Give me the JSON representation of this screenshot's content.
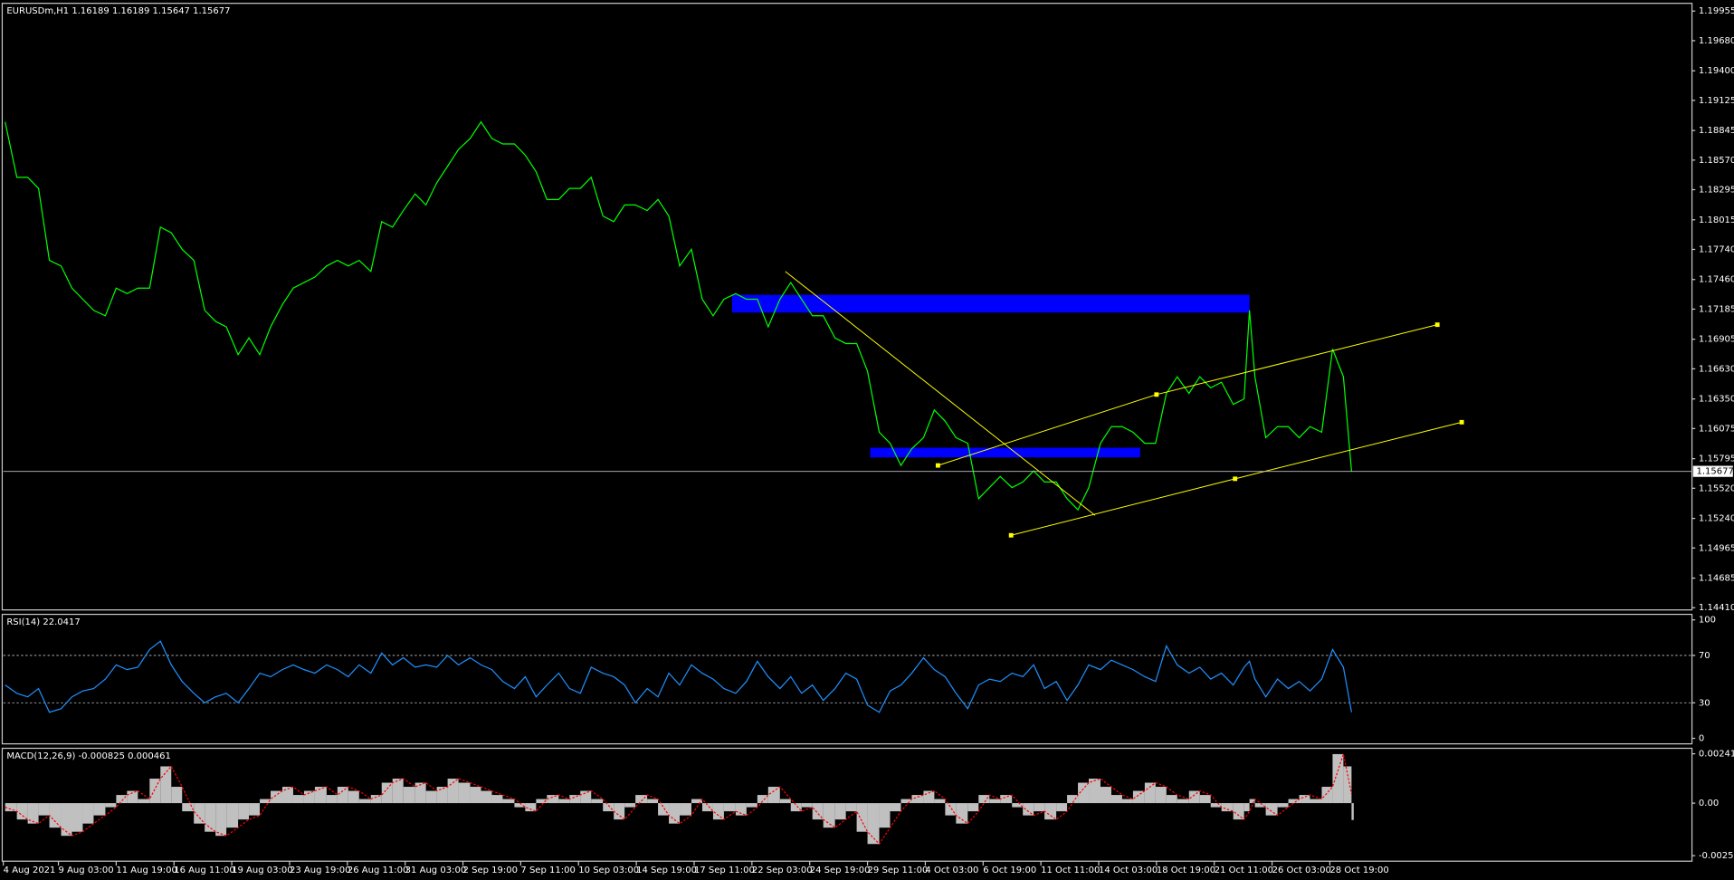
{
  "chart_data": [
    {
      "type": "line",
      "title": "EURUSDm,H1 1.16189 1.16189 1.15647 1.15677",
      "color": "#00ff00",
      "x": [
        2,
        15,
        27,
        39,
        51,
        64,
        76,
        88,
        100,
        113,
        125,
        137,
        149,
        162,
        174,
        186,
        198,
        211,
        223,
        235,
        247,
        260,
        272,
        284,
        296,
        309,
        321,
        333,
        345,
        358,
        370,
        382,
        394,
        407,
        419,
        431,
        443,
        456,
        468,
        480,
        492,
        504,
        517,
        529,
        541,
        553,
        566,
        578,
        590,
        602,
        615,
        627,
        639,
        651,
        664,
        676,
        688,
        700,
        713,
        725,
        737,
        749,
        762,
        774,
        786,
        798,
        811,
        823,
        835,
        847,
        860,
        872,
        884,
        896,
        908,
        921,
        933,
        945,
        957,
        970,
        982,
        994,
        1006,
        1019,
        1031,
        1043,
        1055,
        1068,
        1080,
        1092,
        1104,
        1117,
        1129,
        1141,
        1153,
        1166,
        1178,
        1190,
        1202,
        1215,
        1227,
        1239,
        1251,
        1264,
        1276,
        1288,
        1300,
        1313,
        1325,
        1337,
        1349,
        1362,
        1374,
        1380,
        1386,
        1398,
        1411,
        1423,
        1435,
        1447,
        1460,
        1472,
        1484,
        1493
      ],
      "values": [
        1.18925,
        1.1841,
        1.1841,
        1.18307,
        1.17638,
        1.17586,
        1.1738,
        1.17277,
        1.17174,
        1.17123,
        1.1738,
        1.17329,
        1.1738,
        1.1738,
        1.17947,
        1.17895,
        1.17741,
        1.17638,
        1.17174,
        1.17071,
        1.1702,
        1.16762,
        1.16917,
        1.16762,
        1.1702,
        1.17226,
        1.1738,
        1.17432,
        1.17483,
        1.17586,
        1.17638,
        1.17586,
        1.17638,
        1.17535,
        1.17998,
        1.17947,
        1.18101,
        1.18256,
        1.18153,
        1.18359,
        1.18513,
        1.18668,
        1.18771,
        1.18925,
        1.18771,
        1.1872,
        1.1872,
        1.18616,
        1.18462,
        1.18204,
        1.18204,
        1.18307,
        1.18307,
        1.1841,
        1.1805,
        1.17998,
        1.18153,
        1.18153,
        1.18101,
        1.18204,
        1.1805,
        1.17586,
        1.17741,
        1.17277,
        1.17123,
        1.17277,
        1.17329,
        1.17277,
        1.17277,
        1.1702,
        1.17277,
        1.17432,
        1.17277,
        1.17123,
        1.17123,
        1.16917,
        1.16865,
        1.16865,
        1.16608,
        1.16041,
        1.15938,
        1.15732,
        1.15887,
        1.1599,
        1.16247,
        1.16144,
        1.1599,
        1.15938,
        1.15423,
        1.15526,
        1.15629,
        1.15526,
        1.15578,
        1.15681,
        1.15578,
        1.15578,
        1.15423,
        1.1532,
        1.15526,
        1.15938,
        1.16093,
        1.16093,
        1.16041,
        1.15938,
        1.15938,
        1.16402,
        1.16556,
        1.16402,
        1.16556,
        1.16453,
        1.16505,
        1.16299,
        1.1635,
        1.17174,
        1.16556,
        1.1599,
        1.16093,
        1.16093,
        1.1599,
        1.16093,
        1.16041,
        1.16814,
        1.16556,
        1.15677
      ],
      "xlim": [
        0,
        1870
      ],
      "ylim": [
        1.1441,
        1.19955
      ],
      "yticks": [
        1.19955,
        {
          "value": 1.1968,
          "label": "1.19680"
        },
        {
          "value": 1.194,
          "label": "1.19400"
        },
        1.19125,
        1.18845,
        {
          "value": 1.1857,
          "label": "1.18570"
        },
        1.18295,
        1.18015,
        {
          "value": 1.1774,
          "label": "1.17740"
        },
        {
          "value": 1.1746,
          "label": "1.17460"
        },
        1.17185,
        1.16905,
        {
          "value": 1.1663,
          "label": "1.16630"
        },
        {
          "value": 1.1635,
          "label": "1.16350"
        },
        1.16075,
        1.15795,
        {
          "value": 1.1552,
          "label": "1.15520"
        },
        {
          "value": 1.1524,
          "label": "1.15240"
        },
        1.14965,
        1.14685,
        {
          "value": 1.1441,
          "label": "1.14410"
        }
      ],
      "xticks": [
        {
          "value": 0,
          "label": "4 Aug 2021"
        },
        {
          "value": 61,
          "label": "9 Aug 03:00"
        },
        {
          "value": 125,
          "label": "11 Aug 19:00"
        },
        {
          "value": 189,
          "label": "16 Aug 11:00"
        },
        {
          "value": 253,
          "label": "19 Aug 03:00"
        },
        {
          "value": 317,
          "label": "23 Aug 19:00"
        },
        {
          "value": 381,
          "label": "26 Aug 11:00"
        },
        {
          "value": 445,
          "label": "31 Aug 03:00"
        },
        {
          "value": 509,
          "label": "2 Sep 19:00"
        },
        {
          "value": 573,
          "label": "7 Sep 11:00"
        },
        {
          "value": 637,
          "label": "10 Sep 03:00"
        },
        {
          "value": 701,
          "label": "14 Sep 19:00"
        },
        {
          "value": 765,
          "label": "17 Sep 11:00"
        },
        {
          "value": 829,
          "label": "22 Sep 03:00"
        },
        {
          "value": 893,
          "label": "24 Sep 19:00"
        },
        {
          "value": 957,
          "label": "29 Sep 11:00"
        },
        {
          "value": 1021,
          "label": "4 Oct 03:00"
        },
        {
          "value": 1085,
          "label": "6 Oct 19:00"
        },
        {
          "value": 1149,
          "label": "11 Oct 11:00"
        },
        {
          "value": 1213,
          "label": "14 Oct 03:00"
        },
        {
          "value": 1277,
          "label": "18 Oct 19:00"
        },
        {
          "value": 1341,
          "label": "21 Oct 11:00"
        },
        {
          "value": 1405,
          "label": "26 Oct 03:00"
        },
        {
          "value": 1469,
          "label": "28 Oct 19:00"
        }
      ],
      "last_price": 1.15677,
      "zones": [
        {
          "x": [
            807,
            1380
          ],
          "y": [
            1.17318,
            1.17153
          ],
          "color": "#0000ff"
        },
        {
          "x": [
            960,
            1259
          ],
          "y": [
            1.15897,
            1.15807
          ],
          "color": "#0000ff"
        }
      ],
      "trendlines": [
        {
          "x": [
            866,
            1209
          ],
          "y": [
            1.17535,
            1.15268
          ],
          "color": "#ffff00",
          "handles": false
        },
        {
          "x": [
            1035,
            1277,
            1588
          ],
          "y": [
            1.15732,
            1.16391,
            1.1704
          ],
          "color": "#ffff00",
          "handles": true
        },
        {
          "x": [
            1116,
            1364,
            1615
          ],
          "y": [
            1.15083,
            1.15608,
            1.16134
          ],
          "color": "#ffff00",
          "handles": true
        }
      ]
    },
    {
      "type": "line",
      "title": "RSI(14) 22.0417",
      "color": "#1e90ff",
      "x": [
        2,
        15,
        27,
        39,
        51,
        64,
        76,
        88,
        100,
        113,
        125,
        137,
        149,
        162,
        174,
        186,
        198,
        211,
        223,
        235,
        247,
        260,
        272,
        284,
        296,
        309,
        321,
        333,
        345,
        358,
        370,
        382,
        394,
        407,
        419,
        431,
        443,
        456,
        468,
        480,
        492,
        504,
        517,
        529,
        541,
        553,
        566,
        578,
        590,
        602,
        615,
        627,
        639,
        651,
        664,
        676,
        688,
        700,
        713,
        725,
        737,
        749,
        762,
        774,
        786,
        798,
        811,
        823,
        835,
        847,
        860,
        872,
        884,
        896,
        908,
        921,
        933,
        945,
        957,
        970,
        982,
        994,
        1006,
        1019,
        1031,
        1043,
        1055,
        1068,
        1080,
        1092,
        1104,
        1117,
        1129,
        1141,
        1153,
        1166,
        1178,
        1190,
        1202,
        1215,
        1227,
        1239,
        1251,
        1264,
        1276,
        1288,
        1300,
        1313,
        1325,
        1337,
        1349,
        1362,
        1374,
        1380,
        1386,
        1398,
        1411,
        1423,
        1435,
        1447,
        1460,
        1472,
        1484,
        1493
      ],
      "values": [
        45,
        38,
        35,
        42,
        22,
        25,
        35,
        40,
        42,
        50,
        62,
        58,
        60,
        75,
        82,
        62,
        48,
        38,
        30,
        35,
        38,
        30,
        42,
        55,
        52,
        58,
        62,
        58,
        55,
        62,
        58,
        52,
        62,
        55,
        72,
        62,
        68,
        60,
        62,
        60,
        70,
        62,
        68,
        62,
        58,
        48,
        42,
        52,
        35,
        45,
        55,
        42,
        38,
        60,
        55,
        52,
        45,
        30,
        42,
        35,
        55,
        45,
        62,
        55,
        50,
        42,
        38,
        48,
        65,
        52,
        42,
        52,
        38,
        45,
        32,
        42,
        55,
        50,
        28,
        22,
        40,
        45,
        55,
        68,
        58,
        52,
        38,
        25,
        45,
        50,
        48,
        55,
        52,
        62,
        42,
        48,
        32,
        45,
        62,
        58,
        66,
        62,
        58,
        52,
        48,
        78,
        62,
        55,
        60,
        50,
        55,
        45,
        60,
        65,
        50,
        35,
        50,
        42,
        48,
        40,
        50,
        75,
        60,
        22.0417
      ],
      "xlim": [
        0,
        1870
      ],
      "ylim": [
        0,
        100
      ],
      "yticks": [
        100,
        70,
        30,
        0
      ],
      "levels": [
        70,
        30
      ]
    },
    {
      "type": "bar",
      "title": "MACD(12,26,9) -0.000825 0.000461",
      "color": "#c0c0c0",
      "signal_color": "#ff0000",
      "x": [
        2,
        15,
        27,
        39,
        51,
        64,
        76,
        88,
        100,
        113,
        125,
        137,
        149,
        162,
        174,
        186,
        198,
        211,
        223,
        235,
        247,
        260,
        272,
        284,
        296,
        309,
        321,
        333,
        345,
        358,
        370,
        382,
        394,
        407,
        419,
        431,
        443,
        456,
        468,
        480,
        492,
        504,
        517,
        529,
        541,
        553,
        566,
        578,
        590,
        602,
        615,
        627,
        639,
        651,
        664,
        676,
        688,
        700,
        713,
        725,
        737,
        749,
        762,
        774,
        786,
        798,
        811,
        823,
        835,
        847,
        860,
        872,
        884,
        896,
        908,
        921,
        933,
        945,
        957,
        970,
        982,
        994,
        1006,
        1019,
        1031,
        1043,
        1055,
        1068,
        1080,
        1092,
        1104,
        1117,
        1129,
        1141,
        1153,
        1166,
        1178,
        1190,
        1202,
        1215,
        1227,
        1239,
        1251,
        1264,
        1276,
        1288,
        1300,
        1313,
        1325,
        1337,
        1349,
        1362,
        1374,
        1380,
        1386,
        1398,
        1411,
        1423,
        1435,
        1447,
        1460,
        1472,
        1484,
        1493
      ],
      "values": [
        -0.0004,
        -0.0008,
        -0.001,
        -0.0006,
        -0.0012,
        -0.0016,
        -0.0014,
        -0.001,
        -0.0006,
        -0.0002,
        0.0004,
        0.0006,
        0.0002,
        0.0012,
        0.0018,
        0.0008,
        -0.0004,
        -0.001,
        -0.0014,
        -0.0016,
        -0.0012,
        -0.0008,
        -0.0006,
        0.0002,
        0.0006,
        0.0008,
        0.0004,
        0.0006,
        0.0008,
        0.0004,
        0.0008,
        0.0006,
        0.0002,
        0.0004,
        0.001,
        0.0012,
        0.0008,
        0.001,
        0.0006,
        0.0008,
        0.0012,
        0.001,
        0.0008,
        0.0006,
        0.0004,
        0.0002,
        -0.0002,
        -0.0004,
        0.0002,
        0.0004,
        0.0002,
        0.0004,
        0.0006,
        0.0002,
        -0.0004,
        -0.0008,
        -0.0002,
        0.0004,
        0.0002,
        -0.0006,
        -0.001,
        -0.0006,
        0.0002,
        -0.0004,
        -0.0008,
        -0.0004,
        -0.0006,
        -0.0002,
        0.0004,
        0.0008,
        0.0002,
        -0.0004,
        -0.0002,
        -0.0008,
        -0.0012,
        -0.0008,
        -0.0004,
        -0.0014,
        -0.002,
        -0.0012,
        -0.0004,
        0.0002,
        0.0004,
        0.0006,
        0.0002,
        -0.0006,
        -0.001,
        -0.0004,
        0.0004,
        0.0002,
        0.0004,
        -0.0002,
        -0.0006,
        -0.0004,
        -0.0008,
        -0.0004,
        0.0004,
        0.001,
        0.0012,
        0.0008,
        0.0004,
        0.0002,
        0.0006,
        0.001,
        0.0008,
        0.0004,
        0.0002,
        0.0006,
        0.0004,
        -0.0002,
        -0.0004,
        -0.0008,
        -0.0004,
        0.0002,
        -0.0002,
        -0.0006,
        -0.0002,
        0.0002,
        0.0004,
        0.0002,
        0.0008,
        0.0024,
        0.0018,
        -0.000825
      ],
      "signal_values": [
        -0.0002,
        -0.0004,
        -0.0008,
        -0.001,
        -0.0006,
        -0.0012,
        -0.0016,
        -0.0014,
        -0.001,
        -0.0006,
        -0.0002,
        0.0004,
        0.0006,
        0.0002,
        0.0012,
        0.0018,
        0.0008,
        -0.0004,
        -0.001,
        -0.0014,
        -0.0016,
        -0.0012,
        -0.0008,
        -0.0006,
        0.0002,
        0.0006,
        0.0008,
        0.0004,
        0.0006,
        0.0008,
        0.0004,
        0.0008,
        0.0006,
        0.0002,
        0.0004,
        0.001,
        0.0012,
        0.0008,
        0.001,
        0.0006,
        0.0008,
        0.0012,
        0.001,
        0.0008,
        0.0006,
        0.0004,
        0.0002,
        -0.0002,
        -0.0004,
        0.0002,
        0.0004,
        0.0002,
        0.0004,
        0.0006,
        0.0002,
        -0.0004,
        -0.0008,
        -0.0002,
        0.0004,
        0.0002,
        -0.0006,
        -0.001,
        -0.0006,
        0.0002,
        -0.0004,
        -0.0008,
        -0.0004,
        -0.0006,
        -0.0002,
        0.0004,
        0.0008,
        0.0002,
        -0.0004,
        -0.0002,
        -0.0008,
        -0.0012,
        -0.0008,
        -0.0004,
        -0.0014,
        -0.002,
        -0.0012,
        -0.0004,
        0.0002,
        0.0004,
        0.0006,
        0.0002,
        -0.0006,
        -0.001,
        -0.0004,
        0.0004,
        0.0002,
        0.0004,
        -0.0002,
        -0.0006,
        -0.0004,
        -0.0008,
        -0.0004,
        0.0004,
        0.001,
        0.0012,
        0.0008,
        0.0004,
        0.0002,
        0.0006,
        0.001,
        0.0008,
        0.0004,
        0.0002,
        0.0006,
        0.0004,
        -0.0002,
        -0.0004,
        -0.0008,
        -0.0004,
        0.0002,
        -0.0002,
        -0.0006,
        -0.0002,
        0.0002,
        0.0004,
        0.0002,
        0.0008,
        0.0024,
        0.000461
      ],
      "xlim": [
        0,
        1870
      ],
      "ylim": [
        -0.00257,
        0.002414
      ],
      "yticks": [
        0.002414,
        {
          "value": 0,
          "label": "0.00"
        },
        -0.00257
      ]
    }
  ]
}
